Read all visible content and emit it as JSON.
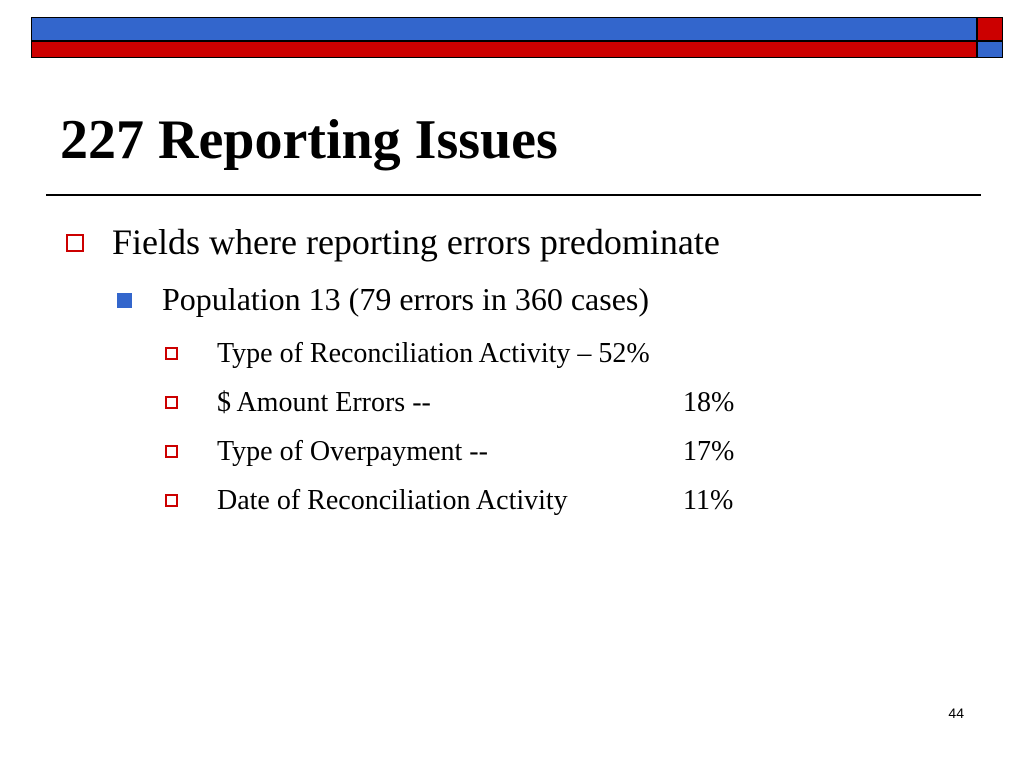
{
  "slide": {
    "title": "227 Reporting Issues",
    "page_number": "44",
    "colors": {
      "banner_blue": "#3366cc",
      "banner_red": "#cc0000",
      "bullet_hollow": "#cc0000",
      "bullet_solid": "#3366cc"
    },
    "bullets": {
      "level1": {
        "text": "Fields where reporting errors predominate",
        "icon": "hollow-square-bullet-icon"
      },
      "level2": {
        "text": "Population 13 (79 errors in 360 cases)",
        "icon": "solid-square-bullet-icon"
      },
      "level3": [
        {
          "label": "Type of Reconciliation Activity – 52%",
          "value": ""
        },
        {
          "label": "$ Amount Errors --",
          "value": "18%"
        },
        {
          "label": "Type of Overpayment --",
          "value": "17%"
        },
        {
          "label": "Date of Reconciliation Activity",
          "value": "11%"
        }
      ]
    }
  }
}
